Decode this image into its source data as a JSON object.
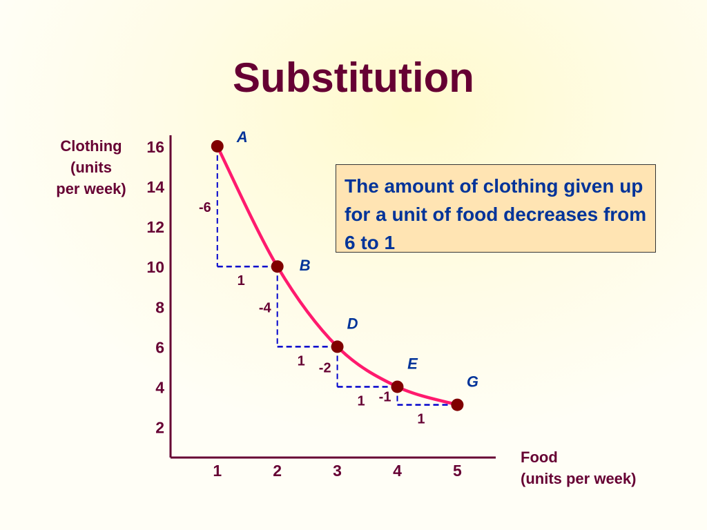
{
  "chart_data": {
    "type": "line",
    "title": "Substitution",
    "xlabel": [
      "Food",
      "(units per week)"
    ],
    "ylabel": [
      "Clothing",
      "(units",
      "per week)"
    ],
    "xlim": [
      0.22,
      5.64
    ],
    "ylim": [
      0.47,
      16.55
    ],
    "x_ticks": [
      1,
      2,
      3,
      4,
      5
    ],
    "y_ticks": [
      2,
      4,
      6,
      8,
      10,
      12,
      14,
      16
    ],
    "points": [
      {
        "label": "A",
        "x": 1,
        "y": 16
      },
      {
        "label": "B",
        "x": 2,
        "y": 10
      },
      {
        "label": "D",
        "x": 3,
        "y": 6
      },
      {
        "label": "E",
        "x": 4,
        "y": 4
      },
      {
        "label": "G",
        "x": 5,
        "y": 3.1
      }
    ],
    "steps": [
      {
        "from_x": 1,
        "from_y": 16,
        "to_x": 2,
        "to_y": 10,
        "rise_label": "-6",
        "run_label": "1"
      },
      {
        "from_x": 2,
        "from_y": 10,
        "to_x": 3,
        "to_y": 6,
        "rise_label": "-4",
        "run_label": "1"
      },
      {
        "from_x": 3,
        "from_y": 6,
        "to_x": 4,
        "to_y": 4,
        "rise_label": "-2",
        "run_label": "1"
      },
      {
        "from_x": 4,
        "from_y": 4,
        "to_x": 5,
        "to_y": 3.1,
        "rise_label": "-1",
        "run_label": "1"
      }
    ],
    "annotation": "The amount of clothing given up for a unit of food decreases from 6 to 1",
    "grid": false,
    "colors": {
      "curve": "#ff1a6e",
      "point": "#800000",
      "step": "#0000cc",
      "axis": "#660033",
      "point_label": "#003399",
      "tick_label": "#660033"
    }
  }
}
